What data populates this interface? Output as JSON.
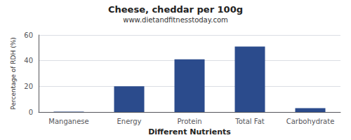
{
  "chart_data": {
    "type": "bar",
    "title": "Cheese, cheddar per 100g",
    "subtitle": "www.dietandfitnesstoday.com",
    "xlabel": "Different Nutrients",
    "ylabel": "Percentage of RDH (%)",
    "categories": [
      "Manganese",
      "Energy",
      "Protein",
      "Total Fat",
      "Carbohydrate"
    ],
    "values": [
      0.3,
      20,
      41,
      51,
      3
    ],
    "color": "#2B4B8C",
    "ylim": [
      0,
      60
    ],
    "yticks": [
      0,
      20,
      40,
      60
    ],
    "grid": true
  }
}
